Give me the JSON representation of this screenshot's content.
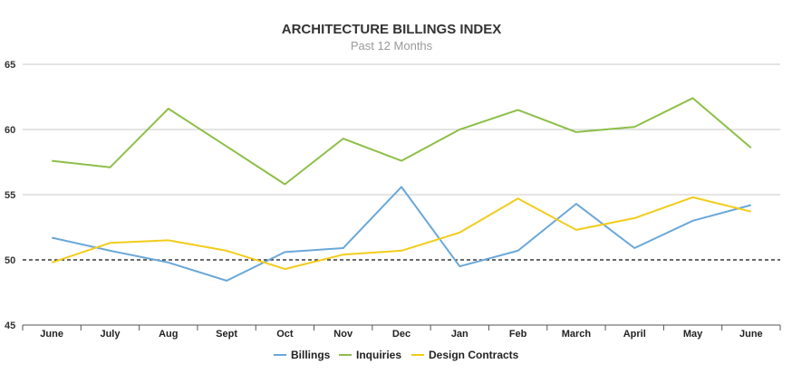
{
  "chart_data": {
    "type": "line",
    "title": "ARCHITECTURE BILLINGS INDEX",
    "subtitle": "Past 12 Months",
    "categories": [
      "June",
      "July",
      "Aug",
      "Sept",
      "Oct",
      "Nov",
      "Dec",
      "Jan",
      "Feb",
      "March",
      "April",
      "May",
      "June"
    ],
    "ylim": [
      45,
      65
    ],
    "yticks": [
      45,
      50,
      55,
      60,
      65
    ],
    "reference_line": 50,
    "grid": true,
    "legend_position": "bottom-center",
    "series": [
      {
        "name": "Billings",
        "color": "#6aa8d8",
        "values": [
          51.7,
          50.7,
          49.8,
          48.4,
          50.6,
          50.9,
          55.6,
          49.5,
          50.7,
          54.3,
          50.9,
          53.0,
          54.2
        ]
      },
      {
        "name": "Inquiries",
        "color": "#8dbf48",
        "values": [
          57.6,
          57.1,
          61.6,
          58.7,
          55.8,
          59.3,
          57.6,
          60.0,
          61.5,
          59.8,
          60.2,
          62.4,
          58.6
        ]
      },
      {
        "name": "Design Contracts",
        "color": "#f2cc1a",
        "values": [
          49.8,
          51.3,
          51.5,
          50.7,
          49.3,
          50.4,
          50.7,
          52.1,
          54.7,
          52.3,
          53.2,
          54.8,
          53.7
        ]
      }
    ]
  }
}
